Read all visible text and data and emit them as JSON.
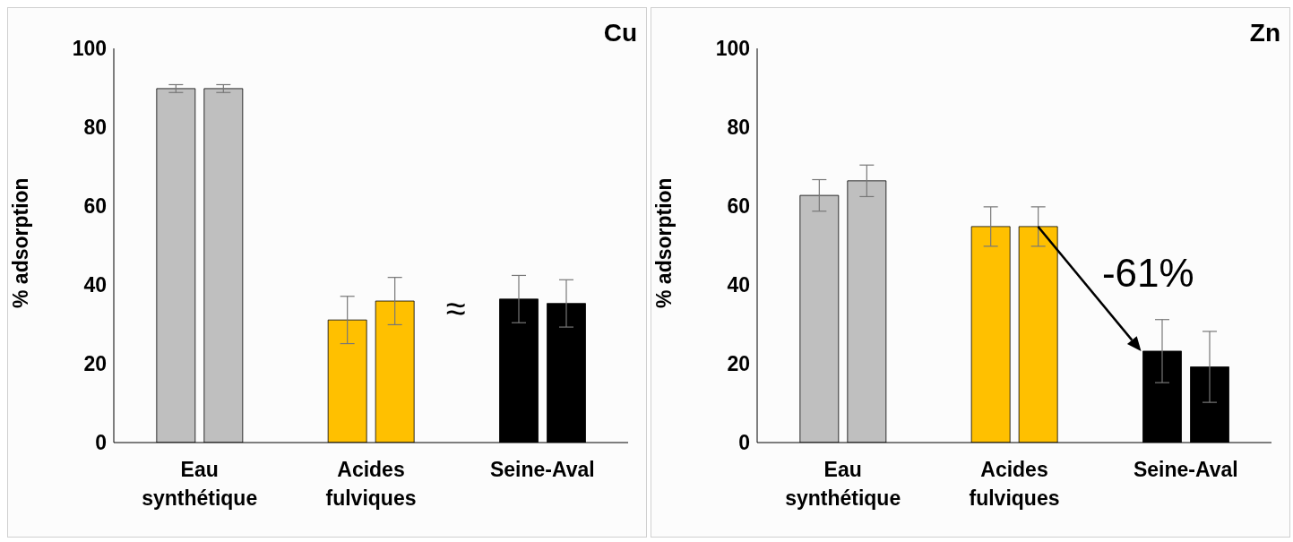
{
  "chart_data": [
    {
      "type": "bar",
      "title": "Cu",
      "ylabel": "% adsorption",
      "categories": [
        "Eau synthétique",
        "Acides fulviques",
        "Seine-Aval"
      ],
      "ylim": [
        0,
        100
      ],
      "yticks": [
        0,
        20,
        40,
        60,
        80,
        100
      ],
      "series": [
        {
          "colors": [
            "#bfbfbf",
            "#ffc000",
            "#000000"
          ],
          "values": [
            89.8,
            31.1,
            36.4
          ],
          "errors": [
            1,
            6,
            6
          ]
        },
        {
          "colors": [
            "#bfbfbf",
            "#ffc000",
            "#000000"
          ],
          "values": [
            89.8,
            35.9,
            35.3
          ],
          "errors": [
            1,
            6,
            6
          ]
        }
      ],
      "annotations": [
        "≈"
      ]
    },
    {
      "type": "bar",
      "title": "Zn",
      "ylabel": "% adsorption",
      "categories": [
        "Eau synthétique",
        "Acides fulviques",
        "Seine-Aval"
      ],
      "ylim": [
        0,
        100
      ],
      "yticks": [
        0,
        20,
        40,
        60,
        80,
        100
      ],
      "series": [
        {
          "colors": [
            "#bfbfbf",
            "#ffc000",
            "#000000"
          ],
          "values": [
            62.7,
            54.8,
            23.2
          ],
          "errors": [
            4,
            5,
            8
          ]
        },
        {
          "colors": [
            "#bfbfbf",
            "#ffc000",
            "#000000"
          ],
          "values": [
            66.4,
            54.8,
            19.2
          ],
          "errors": [
            4,
            5,
            9
          ]
        }
      ],
      "annotations": [
        {
          "text": "-61%",
          "x": "Seine-Aval",
          "y": 23.2
        }
      ]
    }
  ]
}
